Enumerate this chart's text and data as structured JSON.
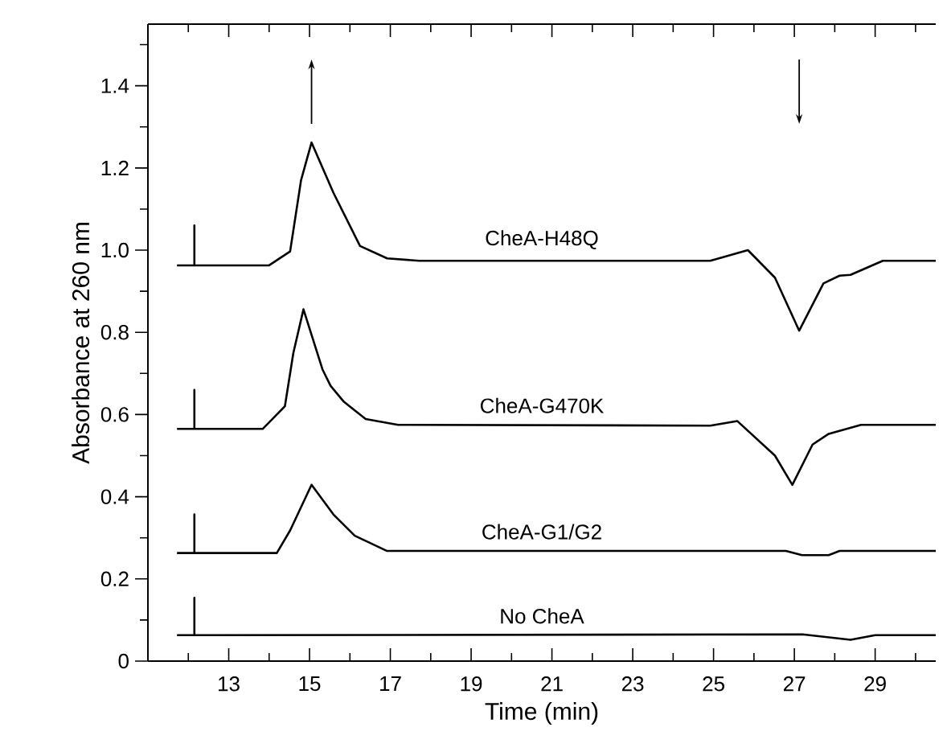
{
  "chart_data": {
    "type": "line",
    "xlabel": "Time (min)",
    "ylabel": "Absorbance at 260 nm",
    "xlim": [
      11,
      30.5
    ],
    "ylim": [
      0,
      1.55
    ],
    "xticks": [
      {
        "value": 12,
        "label": null
      },
      13,
      {
        "value": 14,
        "label": null
      },
      15,
      {
        "value": 16,
        "label": null
      },
      17,
      {
        "value": 18,
        "label": null
      },
      19,
      {
        "value": 20,
        "label": null
      },
      21,
      {
        "value": 22,
        "label": null
      },
      23,
      {
        "value": 24,
        "label": null
      },
      25,
      {
        "value": 26,
        "label": null
      },
      27,
      {
        "value": 28,
        "label": null
      },
      29,
      {
        "value": 30,
        "label": null
      }
    ],
    "yticks": [
      0,
      {
        "value": 0.1,
        "label": null
      },
      0.2,
      {
        "value": 0.3,
        "label": null
      },
      0.4,
      {
        "value": 0.5,
        "label": null
      },
      0.6,
      {
        "value": 0.7,
        "label": null
      },
      0.8,
      {
        "value": 0.9,
        "label": null
      },
      {
        "value": 1.0,
        "label": "1.0"
      },
      {
        "value": 1.1,
        "label": null
      },
      1.2,
      {
        "value": 1.3,
        "label": null
      },
      1.4,
      {
        "value": 1.5,
        "label": null
      }
    ],
    "series": [
      {
        "name": "CheA-H48Q",
        "color": "#000000",
        "x": [
          11.72,
          12.15,
          12.15,
          12.15,
          14.0,
          14.52,
          14.79,
          15.05,
          15.59,
          16.25,
          16.92,
          17.72,
          24.92,
          25.85,
          26.52,
          27.12,
          27.72,
          28.12,
          28.39,
          29.19,
          30.5
        ],
        "values": [
          0.963,
          0.963,
          1.06,
          0.963,
          0.963,
          0.997,
          1.17,
          1.262,
          1.14,
          1.01,
          0.98,
          0.974,
          0.974,
          1.0,
          0.933,
          0.804,
          0.919,
          0.938,
          0.94,
          0.974,
          0.974
        ]
      },
      {
        "name": "CheA-G470K",
        "color": "#000000",
        "x": [
          11.72,
          12.15,
          12.15,
          12.15,
          13.84,
          14.39,
          14.6,
          14.85,
          15.32,
          15.52,
          15.85,
          16.39,
          17.19,
          24.92,
          25.59,
          26.52,
          26.95,
          27.45,
          27.85,
          28.65,
          30.5
        ],
        "values": [
          0.565,
          0.565,
          0.66,
          0.565,
          0.565,
          0.62,
          0.75,
          0.856,
          0.71,
          0.67,
          0.631,
          0.589,
          0.575,
          0.573,
          0.584,
          0.5,
          0.429,
          0.527,
          0.553,
          0.575,
          0.575
        ]
      },
      {
        "name": "CheA-G1/G2",
        "color": "#000000",
        "x": [
          11.72,
          12.15,
          12.15,
          12.15,
          14.19,
          14.52,
          15.05,
          15.59,
          16.12,
          16.92,
          26.79,
          27.19,
          27.85,
          28.12,
          30.5
        ],
        "values": [
          0.263,
          0.263,
          0.357,
          0.263,
          0.263,
          0.318,
          0.429,
          0.357,
          0.305,
          0.268,
          0.268,
          0.258,
          0.258,
          0.268,
          0.268
        ]
      },
      {
        "name": "No CheA",
        "color": "#000000",
        "x": [
          11.72,
          12.15,
          12.15,
          12.15,
          27.2,
          28.39,
          29.0,
          30.5
        ],
        "values": [
          0.063,
          0.063,
          0.154,
          0.063,
          0.065,
          0.052,
          0.063,
          0.063
        ]
      }
    ],
    "grid": false,
    "legend": false,
    "marker": "none",
    "line_style": "solid"
  }
}
